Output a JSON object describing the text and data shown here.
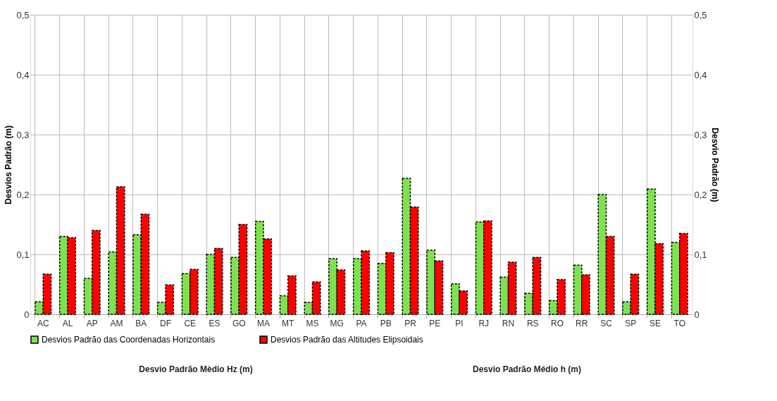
{
  "chart_data": {
    "type": "bar",
    "ylabel": "Desvios Padrão (m)",
    "y2label": "Desvio Padrão (m)",
    "categories": [
      "AC",
      "AL",
      "AP",
      "AM",
      "BA",
      "DF",
      "CE",
      "ES",
      "GO",
      "MA",
      "MT",
      "MS",
      "MG",
      "PA",
      "PB",
      "PR",
      "PE",
      "PI",
      "RJ",
      "RN",
      "RS",
      "RO",
      "RR",
      "SC",
      "SP",
      "SE",
      "TO"
    ],
    "series": [
      {
        "name": "Desvios Padrão das Coordenadas Horizontais",
        "color": "#7ee24f",
        "values": [
          0.021,
          0.13,
          0.06,
          0.104,
          0.133,
          0.02,
          0.068,
          0.1,
          0.095,
          0.155,
          0.031,
          0.02,
          0.093,
          0.093,
          0.085,
          0.227,
          0.107,
          0.051,
          0.154,
          0.062,
          0.035,
          0.023,
          0.082,
          0.2,
          0.021,
          0.209,
          0.12
        ]
      },
      {
        "name": "Desvios Padrão das Altitudes Elipsoidais",
        "color": "#ff0000",
        "values": [
          0.067,
          0.128,
          0.14,
          0.213,
          0.167,
          0.049,
          0.075,
          0.11,
          0.15,
          0.126,
          0.064,
          0.054,
          0.074,
          0.106,
          0.103,
          0.179,
          0.089,
          0.039,
          0.156,
          0.087,
          0.095,
          0.058,
          0.066,
          0.13,
          0.067,
          0.118,
          0.135
        ]
      }
    ],
    "ylim": [
      0,
      0.5
    ],
    "yticks": [
      0,
      {
        "value": 0.1,
        "label": "0,1"
      },
      {
        "value": 0.2,
        "label": "0,2"
      },
      {
        "value": 0.3,
        "label": "0,3"
      },
      {
        "value": 0.4,
        "label": "0,4"
      },
      {
        "value": 0.5,
        "label": "0,5"
      }
    ],
    "y2lim": [
      0,
      0.5
    ],
    "y2ticks": [
      0,
      {
        "value": 0.1,
        "label": "0,1"
      },
      {
        "value": 0.2,
        "label": "0,2"
      },
      {
        "value": 0.3,
        "label": "0,3"
      },
      {
        "value": 0.4,
        "label": "0,4"
      },
      {
        "value": 0.5,
        "label": "0,5"
      }
    ],
    "annotations": [
      "Desvio Padrão Mèdio Hz (m)",
      "Desvio Padrão Médio h (m)"
    ],
    "grid": true,
    "legend": "bottom",
    "line_style": "dashed"
  }
}
